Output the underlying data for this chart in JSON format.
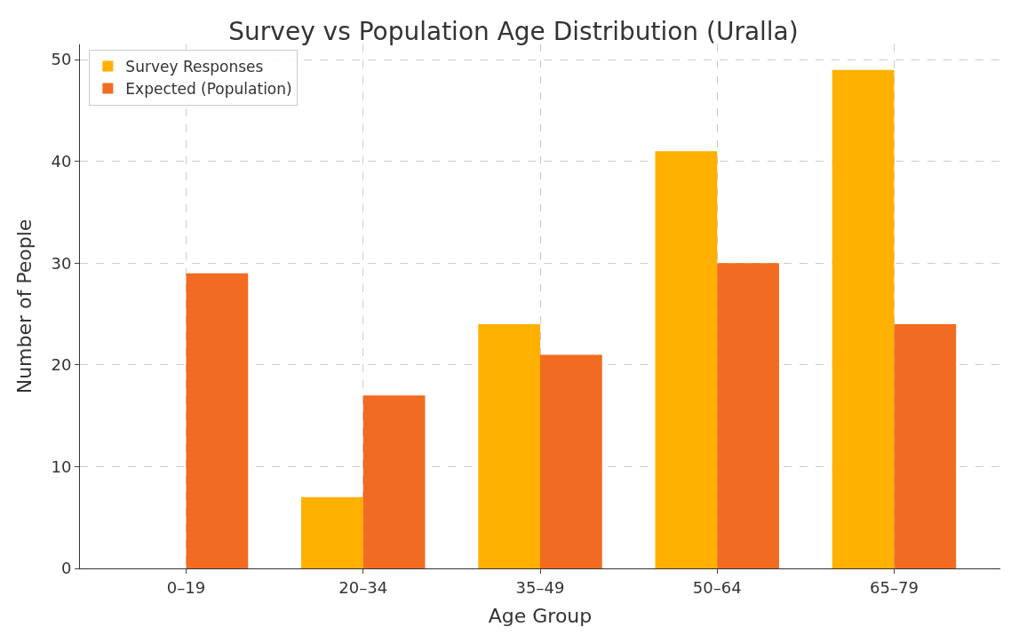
{
  "chart_data": {
    "type": "bar",
    "title": "Survey vs Population Age Distribution (Uralla)",
    "xlabel": "Age Group",
    "ylabel": "Number of People",
    "categories": [
      "0–19",
      "20–34",
      "35–49",
      "50–64",
      "65–79"
    ],
    "series": [
      {
        "name": "Survey Responses",
        "color": "#ffb000",
        "values": [
          0,
          7,
          24,
          41,
          49
        ]
      },
      {
        "name": "Expected (Population)",
        "color": "#f26b22",
        "values": [
          29,
          17,
          21,
          30,
          24
        ]
      }
    ],
    "ylim": [
      0,
      51.5
    ],
    "yticks": [
      0,
      10,
      20,
      30,
      40,
      50
    ],
    "grid": true,
    "legend": "top left"
  }
}
